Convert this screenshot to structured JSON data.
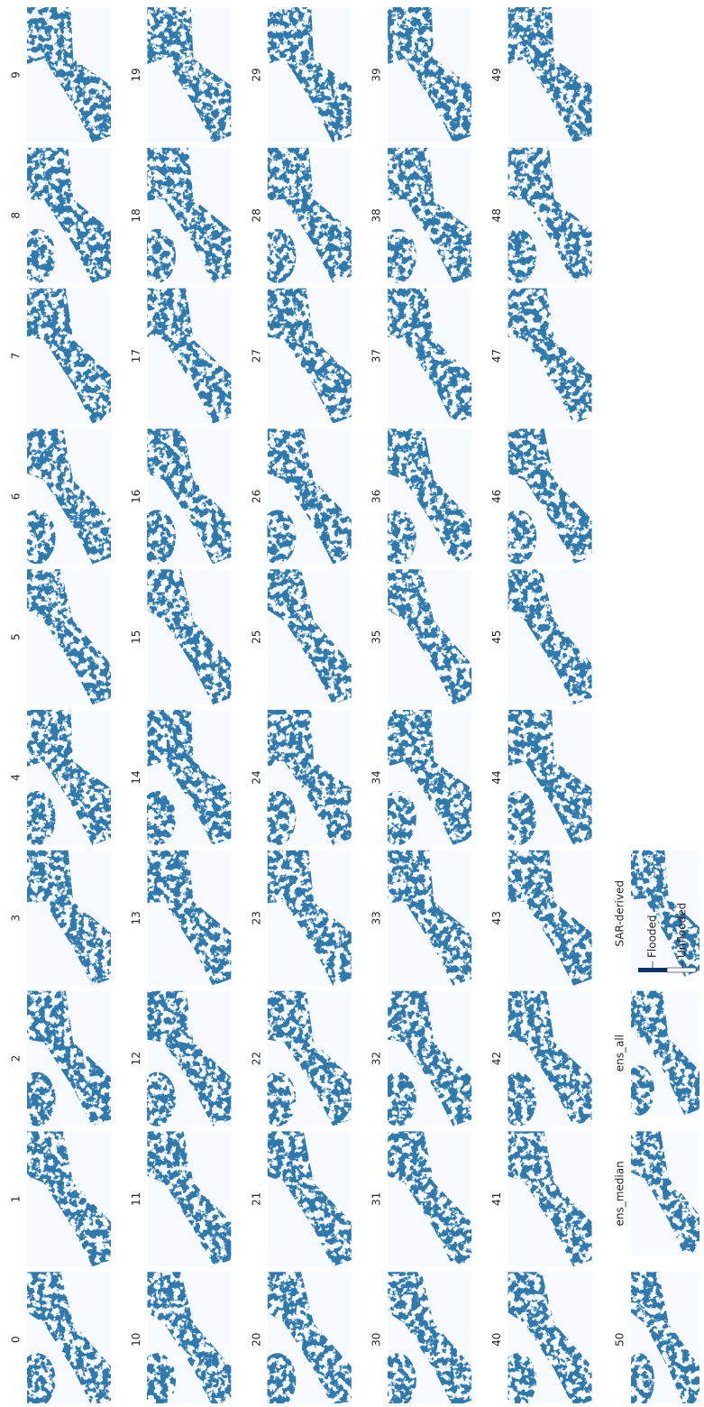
{
  "panels": [
    {
      "label": "0"
    },
    {
      "label": "1"
    },
    {
      "label": "2"
    },
    {
      "label": "3"
    },
    {
      "label": "4"
    },
    {
      "label": "5"
    },
    {
      "label": "6"
    },
    {
      "label": "7"
    },
    {
      "label": "8"
    },
    {
      "label": "9"
    },
    {
      "label": "10"
    },
    {
      "label": "11"
    },
    {
      "label": "12"
    },
    {
      "label": "13"
    },
    {
      "label": "14"
    },
    {
      "label": "15"
    },
    {
      "label": "16"
    },
    {
      "label": "17"
    },
    {
      "label": "18"
    },
    {
      "label": "19"
    },
    {
      "label": "20"
    },
    {
      "label": "21"
    },
    {
      "label": "22"
    },
    {
      "label": "23"
    },
    {
      "label": "24"
    },
    {
      "label": "25"
    },
    {
      "label": "26"
    },
    {
      "label": "27"
    },
    {
      "label": "28"
    },
    {
      "label": "29"
    },
    {
      "label": "30"
    },
    {
      "label": "31"
    },
    {
      "label": "32"
    },
    {
      "label": "33"
    },
    {
      "label": "34"
    },
    {
      "label": "35"
    },
    {
      "label": "36"
    },
    {
      "label": "37"
    },
    {
      "label": "38"
    },
    {
      "label": "39"
    },
    {
      "label": "40"
    },
    {
      "label": "41"
    },
    {
      "label": "42"
    },
    {
      "label": "43"
    },
    {
      "label": "44"
    },
    {
      "label": "45"
    },
    {
      "label": "46"
    },
    {
      "label": "47"
    },
    {
      "label": "48"
    },
    {
      "label": "49"
    },
    {
      "label": "50"
    },
    {
      "label": "ens_median"
    },
    {
      "label": "ens_all"
    },
    {
      "label": "SAR-derived"
    }
  ],
  "colorbar": {
    "labels": [
      "Flooded",
      "Unflooded"
    ]
  }
}
